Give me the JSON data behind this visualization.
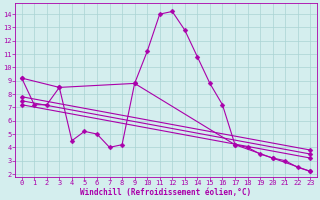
{
  "xlabel": "Windchill (Refroidissement éolien,°C)",
  "background_color": "#d4eeee",
  "line_color": "#aa00aa",
  "xlim": [
    -0.5,
    23.5
  ],
  "ylim": [
    1.8,
    14.8
  ],
  "yticks": [
    2,
    3,
    4,
    5,
    6,
    7,
    8,
    9,
    10,
    11,
    12,
    13,
    14
  ],
  "xticks": [
    0,
    1,
    2,
    3,
    4,
    5,
    6,
    7,
    8,
    9,
    10,
    11,
    12,
    13,
    14,
    15,
    16,
    17,
    18,
    19,
    20,
    21,
    22,
    23
  ],
  "series1_x": [
    0,
    1,
    2,
    3,
    4,
    5,
    6,
    7,
    8,
    9,
    10,
    11,
    12,
    13,
    14,
    15,
    16,
    17,
    18,
    19,
    20,
    21,
    22,
    23
  ],
  "series1_y": [
    9.2,
    7.2,
    7.2,
    8.5,
    4.5,
    5.2,
    5.0,
    4.0,
    4.2,
    8.8,
    11.2,
    14.0,
    14.2,
    12.8,
    10.8,
    8.8,
    7.2,
    4.2,
    4.0,
    3.5,
    3.2,
    3.0,
    2.5,
    2.2
  ],
  "series2_x": [
    0,
    3,
    9,
    17,
    20,
    23
  ],
  "series2_y": [
    9.2,
    8.5,
    8.8,
    4.2,
    3.2,
    2.2
  ],
  "series3_x": [
    0,
    23
  ],
  "series3_y": [
    7.8,
    3.8
  ],
  "series4_x": [
    0,
    23
  ],
  "series4_y": [
    7.5,
    3.5
  ],
  "series5_x": [
    0,
    23
  ],
  "series5_y": [
    7.2,
    3.2
  ],
  "grid_color": "#aad4d4",
  "tick_fontsize": 5,
  "xlabel_fontsize": 5.5,
  "markersize": 2.5,
  "linewidth": 0.8
}
